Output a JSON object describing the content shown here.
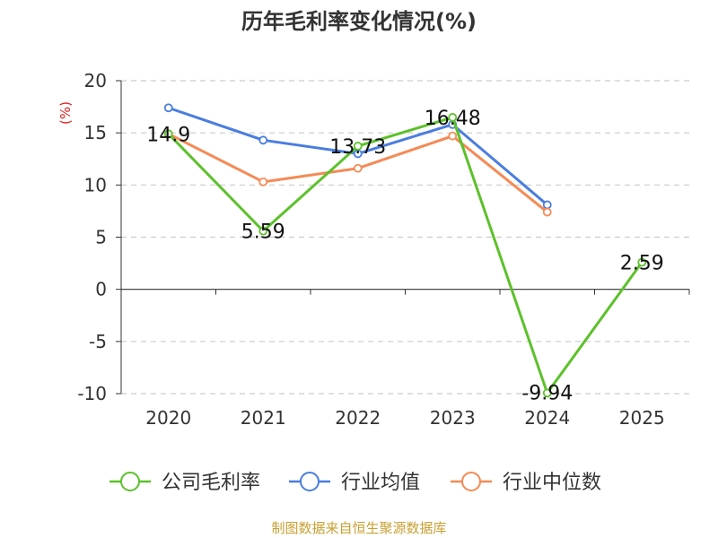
{
  "chart_data": {
    "type": "line",
    "title": "历年毛利率变化情况(%)",
    "ylabel": "(%)",
    "xlabel": "",
    "categories": [
      "2020",
      "2021",
      "2022",
      "2023",
      "2024",
      "2025"
    ],
    "ylim": [
      -10,
      20
    ],
    "yticks": [
      20,
      15,
      10,
      5,
      0,
      -5,
      -10
    ],
    "grid": true,
    "legend_position": "bottom",
    "series": [
      {
        "name": "公司毛利率",
        "color": "#5cc12a",
        "values": [
          14.9,
          5.59,
          13.73,
          16.48,
          -9.94,
          2.59
        ],
        "labels": [
          "14.9",
          "5.59",
          "13.73",
          "16.48",
          "-9.94",
          "2.59"
        ]
      },
      {
        "name": "行业均值",
        "color": "#4a7de0",
        "values": [
          17.4,
          14.3,
          13.0,
          15.8,
          8.1,
          null
        ]
      },
      {
        "name": "行业中位数",
        "color": "#f58a55",
        "values": [
          14.9,
          10.3,
          11.6,
          14.7,
          7.4,
          null
        ]
      }
    ]
  },
  "footer": "制图数据来自恒生聚源数据库"
}
